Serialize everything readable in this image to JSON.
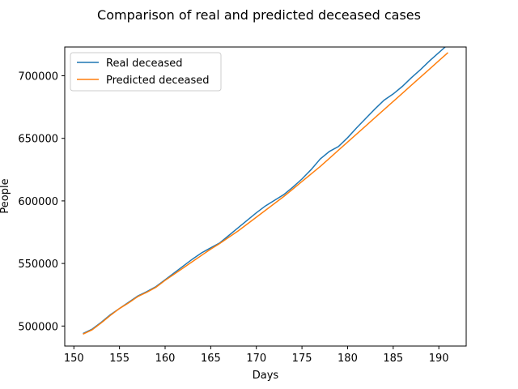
{
  "chart_data": {
    "type": "line",
    "title": "Comparison of real and predicted deceased cases",
    "xlabel": "Days",
    "ylabel": "People",
    "xlim": [
      149,
      193
    ],
    "ylim": [
      484000,
      723000
    ],
    "xticks": [
      150,
      155,
      160,
      165,
      170,
      175,
      180,
      185,
      190
    ],
    "yticks": [
      500000,
      550000,
      600000,
      650000,
      700000
    ],
    "grid": false,
    "legend_position": "top-left",
    "x": [
      151,
      152,
      153,
      154,
      155,
      156,
      157,
      158,
      159,
      160,
      161,
      162,
      163,
      164,
      165,
      166,
      167,
      168,
      169,
      170,
      171,
      172,
      173,
      174,
      175,
      176,
      177,
      178,
      179,
      180,
      181,
      182,
      183,
      184,
      185,
      186,
      187,
      188,
      189,
      190,
      191
    ],
    "series": [
      {
        "name": "Real deceased",
        "color": "#1f77b4",
        "values": [
          494000,
          497500,
          503000,
          509000,
          514000,
          519000,
          524000,
          527500,
          531500,
          537000,
          542500,
          548000,
          553500,
          558500,
          562500,
          566500,
          572500,
          578500,
          584500,
          590500,
          596000,
          600500,
          605000,
          611000,
          617500,
          625000,
          633500,
          639500,
          643500,
          650500,
          658500,
          666000,
          673500,
          680500,
          685500,
          691500,
          698500,
          705000,
          712000,
          718500,
          725000
        ]
      },
      {
        "name": "Predicted deceased",
        "color": "#ff7f0e",
        "values": [
          493500,
          497000,
          502500,
          508500,
          514000,
          518500,
          523500,
          527000,
          531000,
          536500,
          541500,
          546500,
          551500,
          556500,
          561500,
          566000,
          571000,
          576000,
          581500,
          587000,
          592500,
          598000,
          603500,
          609500,
          615500,
          621500,
          627500,
          634000,
          640500,
          647000,
          653500,
          660000,
          666500,
          673000,
          679500,
          686000,
          692500,
          699000,
          705500,
          712000,
          718500
        ]
      }
    ]
  }
}
